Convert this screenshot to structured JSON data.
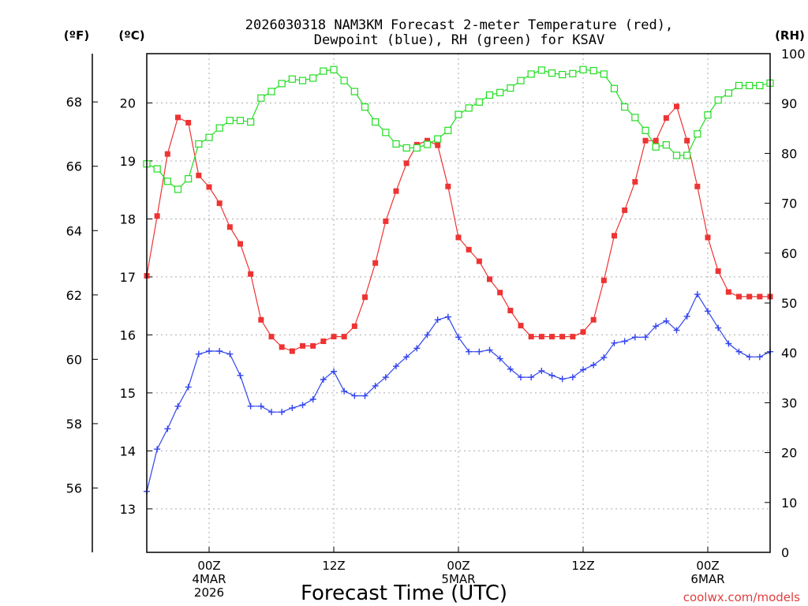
{
  "chart_data": {
    "type": "line",
    "title_line1": "2026030318 NAM3KM Forecast 2-meter Temperature (red),",
    "title_line2": "Dewpoint (blue), RH (green) for KSAV",
    "xlabel": "Forecast Time (UTC)",
    "watermark": "coolwx.com/models",
    "axis_left_f": {
      "unit_label": "(ºF)",
      "ticks": [
        56,
        58,
        60,
        62,
        64,
        66,
        68
      ],
      "range": [
        54.0,
        69.5
      ]
    },
    "axis_left_c": {
      "unit_label": "(ºC)",
      "ticks": [
        13,
        14,
        15,
        16,
        17,
        18,
        19,
        20
      ],
      "range": [
        12.25,
        20.85
      ]
    },
    "axis_right_rh": {
      "unit_label": "(RH)",
      "ticks": [
        0,
        10,
        20,
        30,
        40,
        50,
        60,
        70,
        80,
        90,
        100
      ],
      "range": [
        0,
        100
      ]
    },
    "x_range_hours": [
      -6,
      54
    ],
    "x_ticks": [
      {
        "hour": 0,
        "lines": [
          "00Z",
          "4MAR",
          "2026"
        ]
      },
      {
        "hour": 12,
        "lines": [
          "12Z"
        ]
      },
      {
        "hour": 24,
        "lines": [
          "00Z",
          "5MAR"
        ]
      },
      {
        "hour": 36,
        "lines": [
          "12Z"
        ]
      },
      {
        "hour": 48,
        "lines": [
          "00Z",
          "6MAR"
        ]
      }
    ],
    "series": [
      {
        "name": "2-meter Temperature",
        "units": "C",
        "color": "#ee3333",
        "marker": "filled-square",
        "hours": [
          -6,
          -5,
          -4,
          -3,
          -2,
          -1,
          0,
          1,
          2,
          3,
          4,
          5,
          6,
          7,
          8,
          9,
          10,
          11,
          12,
          13,
          14,
          15,
          16,
          17,
          18,
          19,
          20,
          21,
          22,
          23,
          24,
          25,
          26,
          27,
          28,
          29,
          30,
          31,
          32,
          33,
          34,
          35,
          36,
          37,
          38,
          39,
          40,
          41,
          42,
          43,
          44,
          45,
          46,
          47,
          48,
          49,
          50,
          51,
          52,
          53,
          54
        ],
        "values": [
          17.02,
          18.05,
          19.12,
          19.75,
          19.66,
          18.75,
          18.55,
          18.27,
          17.86,
          17.57,
          17.05,
          16.26,
          15.97,
          15.79,
          15.72,
          15.81,
          15.81,
          15.89,
          15.97,
          15.97,
          16.15,
          16.65,
          17.24,
          17.96,
          18.48,
          18.96,
          19.28,
          19.35,
          19.27,
          18.56,
          17.68,
          17.47,
          17.27,
          16.96,
          16.73,
          16.42,
          16.16,
          15.97,
          15.97,
          15.97,
          15.97,
          15.97,
          16.05,
          16.26,
          16.94,
          17.71,
          18.15,
          18.64,
          19.35,
          19.35,
          19.74,
          19.94,
          19.35,
          18.56,
          17.68,
          17.1,
          16.74,
          16.66,
          16.66,
          16.66,
          16.66
        ]
      },
      {
        "name": "Dewpoint",
        "units": "C",
        "color": "#3344ee",
        "marker": "plus",
        "hours": [
          -6,
          -5,
          -4,
          -3,
          -2,
          -1,
          0,
          1,
          2,
          3,
          4,
          5,
          6,
          7,
          8,
          9,
          10,
          11,
          12,
          13,
          14,
          15,
          16,
          17,
          18,
          19,
          20,
          21,
          22,
          23,
          24,
          25,
          26,
          27,
          28,
          29,
          30,
          31,
          32,
          33,
          34,
          35,
          36,
          37,
          38,
          39,
          40,
          41,
          42,
          43,
          44,
          45,
          46,
          47,
          48,
          49,
          50,
          51,
          52,
          53,
          54
        ],
        "values": [
          13.3,
          14.03,
          14.38,
          14.77,
          15.1,
          15.67,
          15.72,
          15.72,
          15.67,
          15.3,
          14.77,
          14.77,
          14.67,
          14.67,
          14.74,
          14.79,
          14.89,
          15.23,
          15.37,
          15.03,
          14.95,
          14.95,
          15.12,
          15.27,
          15.46,
          15.62,
          15.77,
          16.0,
          16.26,
          16.31,
          15.96,
          15.71,
          15.71,
          15.74,
          15.59,
          15.41,
          15.27,
          15.27,
          15.38,
          15.3,
          15.24,
          15.27,
          15.4,
          15.48,
          15.61,
          15.86,
          15.89,
          15.96,
          15.96,
          16.15,
          16.24,
          16.08,
          16.32,
          16.7,
          16.41,
          16.12,
          15.85,
          15.71,
          15.62,
          15.62,
          15.71
        ]
      },
      {
        "name": "RH",
        "units": "%",
        "color": "#22dd22",
        "marker": "open-square",
        "hours": [
          -6,
          -5,
          -4,
          -3,
          -2,
          -1,
          0,
          1,
          2,
          3,
          4,
          5,
          6,
          7,
          8,
          9,
          10,
          11,
          12,
          13,
          14,
          15,
          16,
          17,
          18,
          19,
          20,
          21,
          22,
          23,
          24,
          25,
          26,
          27,
          28,
          29,
          30,
          31,
          32,
          33,
          34,
          35,
          36,
          37,
          38,
          39,
          40,
          41,
          42,
          43,
          44,
          45,
          46,
          47,
          48,
          49,
          50,
          51,
          52,
          53,
          54
        ],
        "values": [
          77.9,
          76.9,
          74.4,
          72.8,
          74.9,
          81.9,
          83.2,
          85.1,
          86.6,
          86.6,
          86.3,
          91.1,
          92.4,
          94.0,
          94.9,
          94.6,
          95.1,
          96.5,
          96.8,
          94.6,
          92.4,
          89.3,
          86.3,
          84.2,
          81.9,
          81.1,
          81.1,
          81.8,
          82.9,
          84.6,
          87.8,
          89.1,
          90.3,
          91.7,
          92.2,
          93.1,
          94.6,
          95.9,
          96.7,
          96.1,
          95.8,
          96.0,
          96.8,
          96.6,
          95.9,
          93.0,
          89.3,
          87.2,
          84.6,
          81.3,
          81.7,
          79.6,
          79.6,
          83.9,
          87.7,
          90.7,
          92.1,
          93.6,
          93.6,
          93.6,
          94.1
        ]
      }
    ]
  }
}
